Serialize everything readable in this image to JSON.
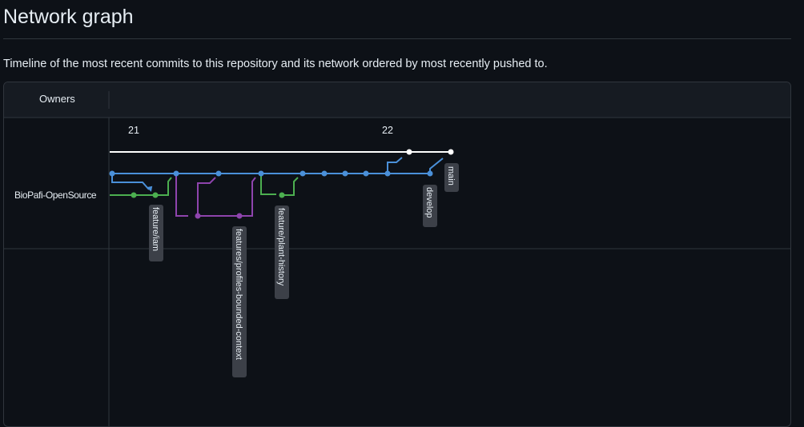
{
  "page": {
    "title": "Network graph",
    "description": "Timeline of the most recent commits to this repository and its network ordered by most recently pushed to."
  },
  "graph": {
    "owners_header": "Owners",
    "owner": "BioPafi-OpenSource",
    "months": [
      "21",
      "22"
    ],
    "colors": {
      "main": "#ffffff",
      "develop": "#4a90d9",
      "feature_green": "#4caf50",
      "feature_purple": "#8e44ad",
      "tag_bg": "#3c4048",
      "grid": "#30363d",
      "header_bg": "#161b22"
    },
    "branch_labels": [
      "feature/iam",
      "features/profiles-bounded-context",
      "feature/plant-history",
      "develop",
      "main"
    ]
  }
}
